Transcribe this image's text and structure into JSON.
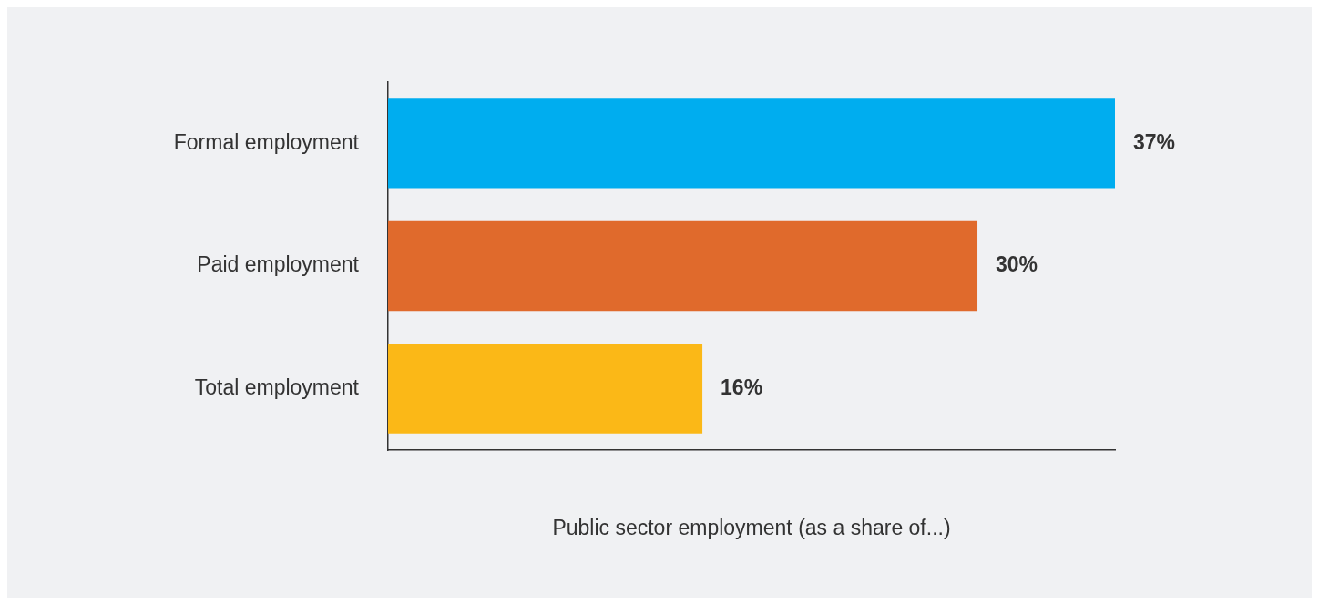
{
  "chart_data": {
    "type": "bar",
    "orientation": "horizontal",
    "xlabel": "Public sector employment (as a share of...)",
    "categories": [
      "Formal employment",
      "Paid employment",
      "Total employment"
    ],
    "values": [
      37,
      30,
      16
    ],
    "colors": [
      "#00adef",
      "#e06a2c",
      "#fbb817"
    ],
    "value_labels": [
      "37%",
      "30%",
      "16%"
    ],
    "xlim": [
      0,
      37
    ],
    "tick_labels": "y",
    "legend": false
  }
}
